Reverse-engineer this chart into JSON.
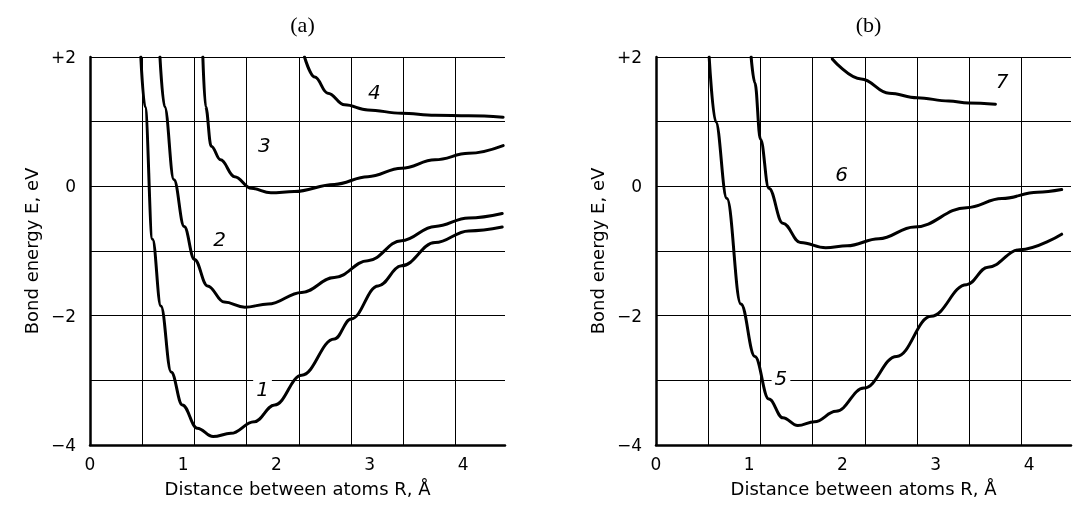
{
  "chart_data": [
    {
      "type": "line",
      "title": "(a)",
      "xlabel": "Distance between atoms R, Å",
      "ylabel": "Bond energy E, eV",
      "xlim": [
        0,
        4.45
      ],
      "ylim": [
        -4,
        2
      ],
      "xticks": [
        0,
        1,
        2,
        3,
        4,
        {
          "value": 0.56,
          "label": null
        },
        {
          "value": 1.12,
          "label": null
        },
        {
          "value": 1.68,
          "label": null
        },
        {
          "value": 2.24,
          "label": null
        },
        {
          "value": 2.8,
          "label": null
        },
        {
          "value": 3.36,
          "label": null
        },
        {
          "value": 3.92,
          "label": null
        }
      ],
      "yticks": [
        {
          "value": -4,
          "label": "−4"
        },
        {
          "value": -3,
          "label": null
        },
        {
          "value": -2,
          "label": "−2"
        },
        {
          "value": -1,
          "label": null
        },
        0,
        {
          "value": 1,
          "label": null
        },
        {
          "value": 2,
          "label": "+2"
        }
      ],
      "grid": true,
      "series": [
        {
          "color": "#000000",
          "x": [
            0.545,
            0.59,
            0.67,
            0.76,
            0.87,
            0.99,
            1.15,
            1.32,
            1.51,
            1.76,
            1.98,
            2.27,
            2.62,
            2.8,
            3.09,
            3.34,
            3.7,
            4.06,
            4.42
          ],
          "values": [
            2,
            1.23,
            -0.82,
            -1.85,
            -2.87,
            -3.38,
            -3.74,
            -3.87,
            -3.82,
            -3.64,
            -3.38,
            -2.92,
            -2.36,
            -2.05,
            -1.54,
            -1.23,
            -0.87,
            -0.69,
            -0.63
          ]
        },
        {
          "color": "#000000",
          "x": [
            0.75,
            0.8,
            0.9,
            1.01,
            1.12,
            1.26,
            1.44,
            1.66,
            1.91,
            2.27,
            2.62,
            2.98,
            3.34,
            3.7,
            4.06,
            4.42
          ],
          "values": [
            2,
            1.23,
            0.1,
            -0.62,
            -1.13,
            -1.54,
            -1.79,
            -1.87,
            -1.82,
            -1.64,
            -1.41,
            -1.15,
            -0.84,
            -0.62,
            -0.49,
            -0.42
          ]
        },
        {
          "color": "#000000",
          "x": [
            1.21,
            1.24,
            1.3,
            1.4,
            1.55,
            1.73,
            1.94,
            2.19,
            2.62,
            2.98,
            3.34,
            3.7,
            4.06,
            4.43
          ],
          "values": [
            2,
            1.23,
            0.62,
            0.41,
            0.15,
            -0.03,
            -0.1,
            -0.08,
            0.03,
            0.15,
            0.28,
            0.41,
            0.51,
            0.63
          ]
        },
        {
          "color": "#000000",
          "x": [
            2.3,
            2.41,
            2.55,
            2.73,
            2.98,
            3.34,
            3.7,
            4.06,
            4.43
          ],
          "values": [
            2,
            1.69,
            1.44,
            1.26,
            1.18,
            1.13,
            1.1,
            1.09,
            1.07
          ]
        }
      ],
      "annotations": [
        {
          "text": "1",
          "x": 1.85,
          "y": -3.13
        },
        {
          "text": "2",
          "x": 1.39,
          "y": -0.82
        },
        {
          "text": "3",
          "x": 1.87,
          "y": 0.64
        },
        {
          "text": "4",
          "x": 3.05,
          "y": 1.46
        }
      ]
    },
    {
      "type": "line",
      "title": "(b)",
      "xlabel": "Distance between atoms R, Å",
      "ylabel": "Bond energy E, eV",
      "xlim": [
        0,
        4.45
      ],
      "ylim": [
        -4,
        2
      ],
      "xticks": [
        0,
        1,
        2,
        3,
        4,
        {
          "value": 0.56,
          "label": null
        },
        {
          "value": 1.12,
          "label": null
        },
        {
          "value": 1.68,
          "label": null
        },
        {
          "value": 2.24,
          "label": null
        },
        {
          "value": 2.8,
          "label": null
        },
        {
          "value": 3.36,
          "label": null
        },
        {
          "value": 3.92,
          "label": null
        }
      ],
      "yticks": [
        {
          "value": -4,
          "label": "−4"
        },
        {
          "value": -3,
          "label": null
        },
        {
          "value": -2,
          "label": "−2"
        },
        {
          "value": -1,
          "label": null
        },
        0,
        {
          "value": 1,
          "label": null
        },
        {
          "value": 2,
          "label": "+2"
        }
      ],
      "grid": true,
      "series": [
        {
          "color": "#000000",
          "x": [
            0.57,
            0.64,
            0.76,
            0.91,
            1.06,
            1.21,
            1.36,
            1.52,
            1.7,
            1.93,
            2.23,
            2.58,
            2.95,
            3.33,
            3.56,
            3.9,
            4.35
          ],
          "values": [
            2,
            1.0,
            -0.19,
            -1.82,
            -2.63,
            -3.29,
            -3.58,
            -3.7,
            -3.64,
            -3.48,
            -3.12,
            -2.63,
            -2.01,
            -1.52,
            -1.25,
            -0.98,
            -0.74
          ]
        },
        {
          "color": "#000000",
          "x": [
            1.02,
            1.06,
            1.12,
            1.21,
            1.36,
            1.55,
            1.82,
            2.05,
            2.39,
            2.77,
            3.33,
            3.71,
            4.09,
            4.35
          ],
          "values": [
            2,
            1.6,
            0.73,
            -0.03,
            -0.57,
            -0.87,
            -0.95,
            -0.92,
            -0.81,
            -0.63,
            -0.33,
            -0.19,
            -0.09,
            -0.05
          ]
        },
        {
          "color": "#000000",
          "x": [
            1.89,
            2.2,
            2.5,
            2.8,
            3.14,
            3.35,
            3.64
          ],
          "values": [
            1.97,
            1.66,
            1.44,
            1.37,
            1.32,
            1.29,
            1.27
          ]
        }
      ],
      "annotations": [
        {
          "text": "5",
          "x": 1.34,
          "y": -2.96
        },
        {
          "text": "6",
          "x": 1.99,
          "y": 0.19
        },
        {
          "text": "7",
          "x": 3.71,
          "y": 1.63
        }
      ]
    }
  ]
}
